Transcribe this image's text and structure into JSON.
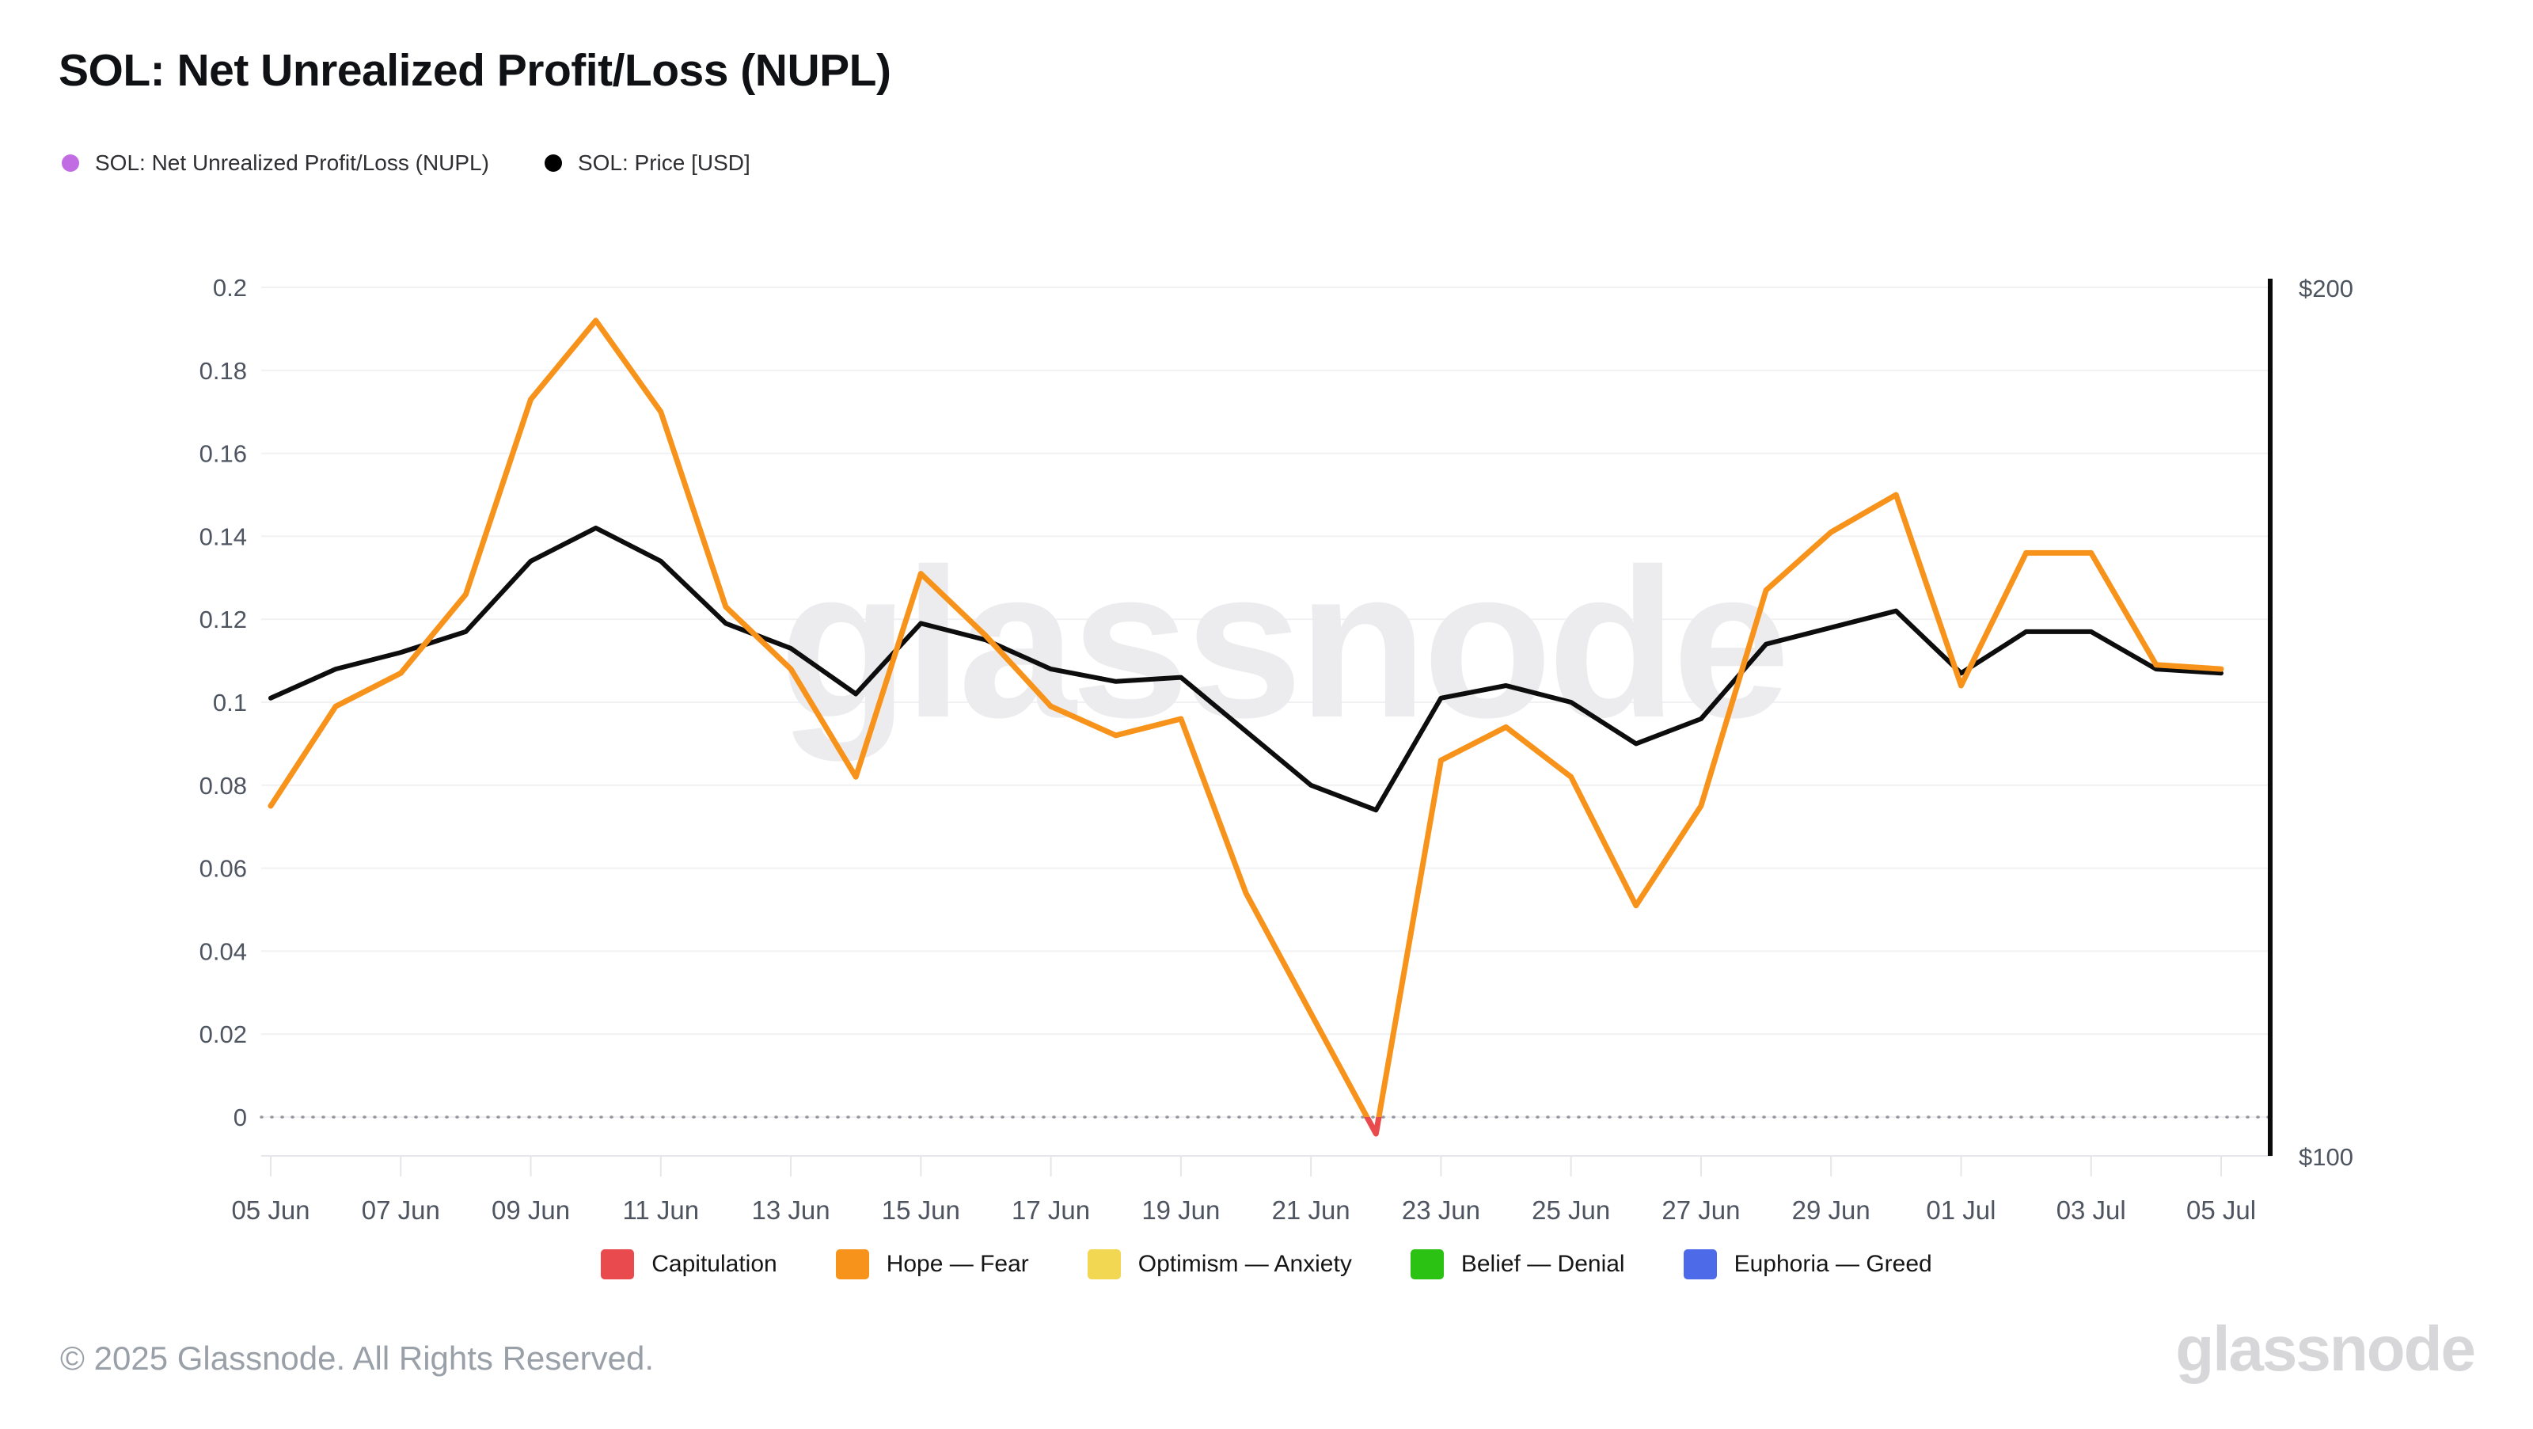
{
  "page": {
    "title": "SOL: Net Unrealized Profit/Loss (NUPL)",
    "watermark": "glassnode",
    "footer_left": "© 2025 Glassnode. All Rights Reserved.",
    "footer_logo": "glassnode"
  },
  "top_legend": [
    {
      "label": "SOL: Net Unrealized Profit/Loss (NUPL)",
      "color": "#c26ce4"
    },
    {
      "label": "SOL: Price [USD]",
      "color": "#000000"
    }
  ],
  "zone_legend": [
    {
      "label": "Capitulation",
      "color": "#e84a4e"
    },
    {
      "label": "Hope — Fear",
      "color": "#f7931a"
    },
    {
      "label": "Optimism — Anxiety",
      "color": "#f2d852"
    },
    {
      "label": "Belief — Denial",
      "color": "#2cc214"
    },
    {
      "label": "Euphoria — Greed",
      "color": "#4d6be8"
    }
  ],
  "chart_data": {
    "type": "line",
    "title": "SOL: Net Unrealized Profit/Loss (NUPL)",
    "x": [
      "05 Jun",
      "06 Jun",
      "07 Jun",
      "08 Jun",
      "09 Jun",
      "10 Jun",
      "11 Jun",
      "12 Jun",
      "13 Jun",
      "14 Jun",
      "15 Jun",
      "16 Jun",
      "17 Jun",
      "18 Jun",
      "19 Jun",
      "20 Jun",
      "21 Jun",
      "22 Jun",
      "23 Jun",
      "24 Jun",
      "25 Jun",
      "26 Jun",
      "27 Jun",
      "28 Jun",
      "29 Jun",
      "30 Jun",
      "01 Jul",
      "02 Jul",
      "03 Jul",
      "04 Jul",
      "05 Jul"
    ],
    "x_tick_labels": [
      "05 Jun",
      "07 Jun",
      "09 Jun",
      "11 Jun",
      "13 Jun",
      "15 Jun",
      "17 Jun",
      "19 Jun",
      "21 Jun",
      "23 Jun",
      "25 Jun",
      "27 Jun",
      "29 Jun",
      "01 Jul",
      "03 Jul",
      "05 Jul"
    ],
    "series": [
      {
        "name": "SOL: Net Unrealized Profit/Loss (NUPL)",
        "axis": "left",
        "color": "#f7931a",
        "negative_color": "#e84a4e",
        "values": [
          0.075,
          0.099,
          0.107,
          0.126,
          0.173,
          0.192,
          0.17,
          0.123,
          0.108,
          0.082,
          0.131,
          0.116,
          0.099,
          0.092,
          0.096,
          0.054,
          0.025,
          -0.004,
          0.086,
          0.094,
          0.082,
          0.051,
          0.075,
          0.127,
          0.141,
          0.15,
          0.104,
          0.136,
          0.136,
          0.109,
          0.108
        ]
      },
      {
        "name": "SOL: Price [USD]",
        "axis": "right",
        "color": "#0d0d0d",
        "values_usd": [
          150.5,
          154,
          156,
          158.5,
          167,
          171,
          167,
          159.5,
          156.5,
          151,
          159.5,
          157.5,
          154,
          152.5,
          153,
          146.5,
          140,
          137,
          150.5,
          152,
          150,
          145,
          148,
          157,
          159,
          161,
          153.5,
          158.5,
          158.5,
          154,
          153.5
        ]
      }
    ],
    "left_axis": {
      "min": 0,
      "max": 0.2,
      "tick_step": 0.02,
      "tick_labels": [
        "0.2",
        "0.18",
        "0.16",
        "0.14",
        "0.12",
        "0.1",
        "0.08",
        "0.06",
        "0.04",
        "0.02",
        "0"
      ]
    },
    "right_axis": {
      "min": 100,
      "max": 200,
      "top_label": "$200",
      "bottom_label": "$100"
    },
    "grid": "horizontal",
    "zero_line": "dotted",
    "legend_position": "bottom",
    "colors": {
      "grid": "#f1f1f4",
      "zero_dots": "#97979f",
      "axis_text": "#4e5560",
      "x_axis_line": "#e6e6ea",
      "right_axis_line": "#0a0a0a",
      "watermark": "#ececee"
    }
  }
}
